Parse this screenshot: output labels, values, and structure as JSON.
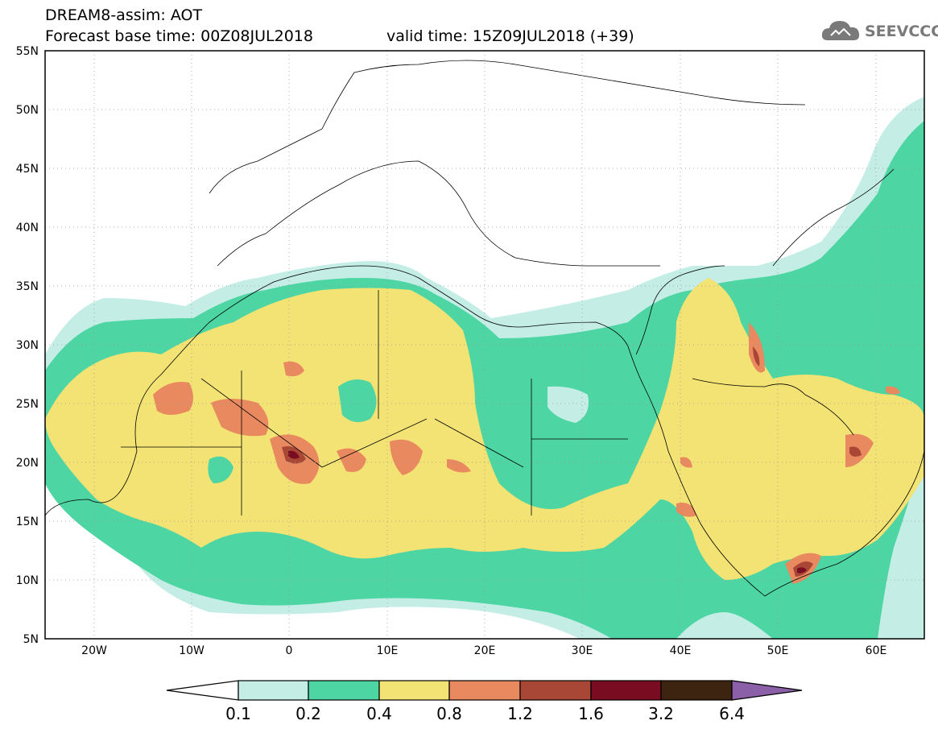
{
  "header": {
    "title": "DREAM8-assim: AOT",
    "base_time": "Forecast base time: 00Z08JUL2018",
    "valid_time": "valid time: 15Z09JUL2018 (+39)"
  },
  "logo": {
    "icon": "cloud-icon",
    "text": "SEEVCCC"
  },
  "map": {
    "lon_range": [
      -25,
      65
    ],
    "lat_range": [
      5,
      55
    ],
    "lat_ticks": [
      "55N",
      "50N",
      "45N",
      "40N",
      "35N",
      "30N",
      "25N",
      "20N",
      "15N",
      "10N",
      "5N"
    ],
    "lon_ticks": [
      "20W",
      "10W",
      "0",
      "10E",
      "20E",
      "30E",
      "40E",
      "50E",
      "60E"
    ],
    "grid": "dotted"
  },
  "legend": {
    "levels": [
      "0.1",
      "0.2",
      "0.4",
      "0.8",
      "1.2",
      "1.6",
      "3.2",
      "6.4"
    ],
    "colors": {
      "below": "#ffffff",
      "c1": "#c4ede6",
      "c2": "#4dd5a3",
      "c3": "#f3e274",
      "c4": "#e8895f",
      "c5": "#a94736",
      "c6": "#7a0c22",
      "c7": "#3d2411",
      "above": "#8b60a8"
    }
  }
}
